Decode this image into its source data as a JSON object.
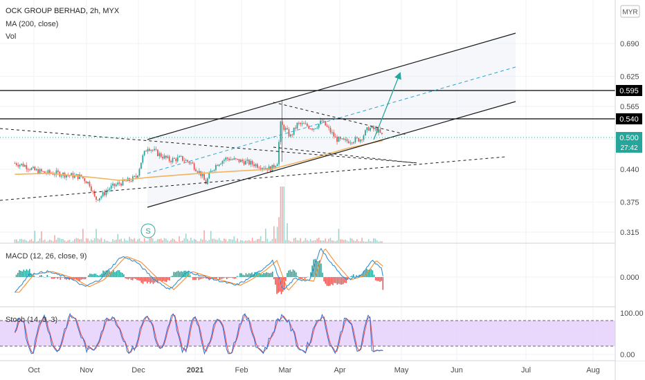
{
  "legend": {
    "title": "OCK GROUP BERHAD, 2h, MYX",
    "ma": "MA (200, close)",
    "vol": "Vol",
    "macd": "MACD (12, 26, close, 9)",
    "stoch": "Stoch (14, 3, 3)"
  },
  "currency_button": "MYR",
  "colors": {
    "up": "#26a69a",
    "down": "#ef5350",
    "ma": "#f2b35b",
    "macd": "#2f8fd6",
    "signal": "#ff8a2b",
    "stoch_k": "#2f6fd6",
    "stoch_d": "#e04b4b",
    "stoch_band": "#e4cdfb",
    "current_price": "#26a69a",
    "level": "#000000",
    "projection": "#2fa3d6",
    "arrow": "#26a69a"
  },
  "chart_data": {
    "type": "candlestick",
    "title": "OCK GROUP BERHAD, 2h, MYX",
    "x_tick_labels": [
      "Oct",
      "Nov",
      "Dec",
      "2021",
      "Feb",
      "Mar",
      "Apr",
      "May",
      "Jun",
      "Jul",
      "Aug"
    ],
    "price_axis": {
      "ticks": [
        "0.690",
        "0.625",
        "0.565",
        "0.500",
        "0.440",
        "0.375",
        "0.315"
      ],
      "tick_values": [
        0.69,
        0.625,
        0.565,
        0.5,
        0.44,
        0.375,
        0.315
      ],
      "ylim": [
        0.3,
        0.72
      ]
    },
    "levels": [
      {
        "label": "0.595",
        "value": 0.595
      },
      {
        "label": "0.540",
        "value": 0.54
      }
    ],
    "current_price": {
      "label": "0.500",
      "value": 0.5,
      "countdown": "27:42"
    },
    "price_path": [
      [
        "2020-09-17",
        0.452
      ],
      [
        "2020-09-24",
        0.448
      ],
      [
        "2020-10-01",
        0.438
      ],
      [
        "2020-10-08",
        0.433
      ],
      [
        "2020-10-15",
        0.432
      ],
      [
        "2020-10-22",
        0.428
      ],
      [
        "2020-10-29",
        0.425
      ],
      [
        "2020-11-03",
        0.41
      ],
      [
        "2020-11-06",
        0.38
      ],
      [
        "2020-11-10",
        0.388
      ],
      [
        "2020-11-14",
        0.402
      ],
      [
        "2020-11-20",
        0.412
      ],
      [
        "2020-11-26",
        0.418
      ],
      [
        "2020-11-30",
        0.425
      ],
      [
        "2020-12-03",
        0.462
      ],
      [
        "2020-12-06",
        0.485
      ],
      [
        "2020-12-12",
        0.47
      ],
      [
        "2020-12-18",
        0.458
      ],
      [
        "2020-12-24",
        0.462
      ],
      [
        "2020-12-30",
        0.452
      ],
      [
        "2021-01-05",
        0.43
      ],
      [
        "2021-01-08",
        0.412
      ],
      [
        "2021-01-12",
        0.438
      ],
      [
        "2021-01-16",
        0.452
      ],
      [
        "2021-01-22",
        0.462
      ],
      [
        "2021-01-28",
        0.458
      ],
      [
        "2021-02-03",
        0.455
      ],
      [
        "2021-02-09",
        0.45
      ],
      [
        "2021-02-15",
        0.445
      ],
      [
        "2021-02-20",
        0.44
      ],
      [
        "2021-02-24",
        0.455
      ],
      [
        "2021-02-26",
        0.53
      ],
      [
        "2021-03-01",
        0.52
      ],
      [
        "2021-03-04",
        0.505
      ],
      [
        "2021-03-08",
        0.53
      ],
      [
        "2021-03-12",
        0.528
      ],
      [
        "2021-03-17",
        0.522
      ],
      [
        "2021-03-22",
        0.535
      ],
      [
        "2021-03-26",
        0.518
      ],
      [
        "2021-03-30",
        0.5
      ],
      [
        "2021-04-03",
        0.495
      ],
      [
        "2021-04-07",
        0.498
      ],
      [
        "2021-04-11",
        0.5
      ],
      [
        "2021-04-15",
        0.522
      ],
      [
        "2021-04-19",
        0.518
      ],
      [
        "2021-04-22",
        0.505
      ]
    ],
    "ma_path": [
      [
        "2020-09-17",
        0.43
      ],
      [
        "2020-10-10",
        0.432
      ],
      [
        "2020-11-01",
        0.425
      ],
      [
        "2020-11-20",
        0.418
      ],
      [
        "2020-12-10",
        0.425
      ],
      [
        "2021-01-05",
        0.432
      ],
      [
        "2021-02-01",
        0.437
      ],
      [
        "2021-02-20",
        0.44
      ],
      [
        "2021-03-15",
        0.46
      ],
      [
        "2021-04-05",
        0.482
      ],
      [
        "2021-04-22",
        0.497
      ]
    ],
    "macd_axis": {
      "ticks": [
        "0.000"
      ],
      "tick_values": [
        0
      ],
      "ylim": [
        -0.03,
        0.04
      ]
    },
    "stoch_axis": {
      "ticks": [
        "100.00",
        "0.00"
      ],
      "tick_values": [
        100,
        0
      ],
      "band": [
        20,
        80
      ]
    }
  }
}
